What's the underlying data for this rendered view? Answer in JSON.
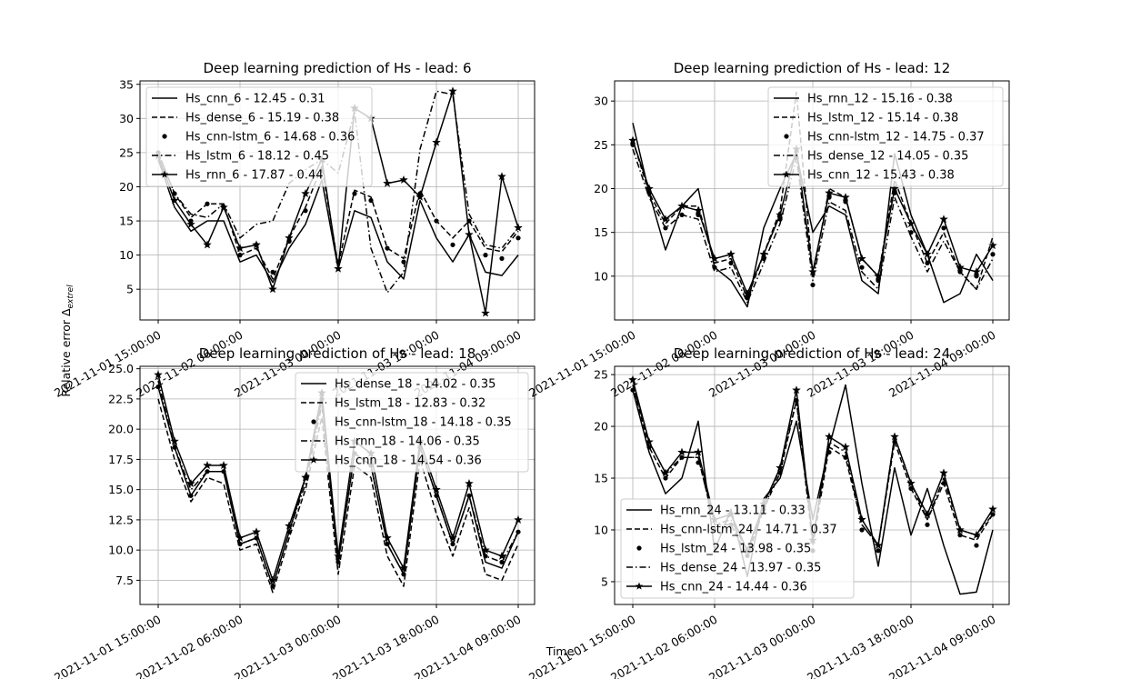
{
  "figure": {
    "ylabel": "Relative error Δ",
    "ylabel_sub": "extrel",
    "xlabel": "Time"
  },
  "chart_data": [
    {
      "type": "line",
      "title": "Deep learning prediction of Hs - lead: 6",
      "xticks": [
        "2021-11-01 15:00:00",
        "2021-11-02 06:00:00",
        "2021-11-03 00:00:00",
        "2021-11-03 18:00:00",
        "2021-11-04 09:00:00"
      ],
      "xtick_index": [
        0,
        5,
        11,
        17,
        22
      ],
      "yticks": [
        5,
        10,
        15,
        20,
        25,
        30,
        35
      ],
      "ylim": [
        0.5,
        35.5
      ],
      "grid": true,
      "legend_position": "upper-left",
      "series": [
        {
          "name": "Hs_cnn_6 - 12.45 - 0.31",
          "style": "solid",
          "values": [
            24,
            17,
            13.5,
            15,
            15,
            9,
            10,
            6,
            11,
            14.5,
            21,
            8,
            16.5,
            15.5,
            9,
            6.5,
            18,
            12.5,
            9,
            13,
            7.5,
            7,
            10
          ]
        },
        {
          "name": "Hs_dense_6 - 15.19 - 0.38",
          "style": "dashed",
          "values": [
            25,
            19,
            15.5,
            17.5,
            17.5,
            10,
            11,
            6.5,
            12.5,
            17,
            23,
            8.5,
            19.5,
            18.5,
            11,
            9.5,
            19.5,
            15,
            12.5,
            15,
            11,
            10.5,
            13.5
          ]
        },
        {
          "name": "Hs_cnn-lstm_6 - 14.68 - 0.36",
          "style": "dotted-markers",
          "values": [
            25,
            19,
            15,
            17.5,
            17,
            10,
            11.5,
            7.5,
            12,
            16.5,
            22.5,
            9,
            19,
            18,
            11,
            9,
            19,
            15,
            11.5,
            15,
            10,
            9.5,
            12.5
          ]
        },
        {
          "name": "Hs_lstm_6 - 18.12 - 0.45",
          "style": "dashdot",
          "values": [
            25,
            19,
            16,
            15.5,
            17.5,
            12.5,
            14.5,
            15,
            20.5,
            22.5,
            24,
            22,
            31,
            11,
            4.5,
            7.5,
            25.5,
            34,
            33.5,
            16,
            11.5,
            11,
            14
          ]
        },
        {
          "name": "Hs_rnn_6 - 17.87 - 0.44",
          "style": "solid-star",
          "values": [
            24.5,
            18,
            14.5,
            11.5,
            17,
            11,
            11.5,
            5,
            12.5,
            19,
            24,
            8,
            31.5,
            30,
            20.5,
            21,
            18.5,
            26.5,
            34,
            13,
            1.5,
            21.5,
            14
          ]
        }
      ]
    },
    {
      "type": "line",
      "title": "Deep learning prediction of Hs - lead: 12",
      "xticks": [
        "2021-11-01 15:00:00",
        "2021-11-02 06:00:00",
        "2021-11-03 00:00:00",
        "2021-11-03 18:00:00",
        "2021-11-04 09:00:00"
      ],
      "xtick_index": [
        0,
        5,
        11,
        17,
        22
      ],
      "yticks": [
        10,
        15,
        20,
        25,
        30
      ],
      "ylim": [
        5,
        32.3
      ],
      "grid": true,
      "legend_position": "upper-right",
      "series": [
        {
          "name": "Hs_rnn_12 - 15.16 - 0.38",
          "style": "solid",
          "values": [
            27.5,
            19.5,
            13,
            18,
            20,
            11,
            9.5,
            6.5,
            15.5,
            20,
            24,
            15,
            18,
            17,
            9.5,
            8,
            24,
            17,
            12.5,
            7,
            8,
            12.5,
            9.5
          ]
        },
        {
          "name": "Hs_lstm_12 - 15.14 - 0.38",
          "style": "dashed",
          "values": [
            25.5,
            19.5,
            16,
            18,
            18,
            11.5,
            12,
            7.5,
            12.5,
            17.5,
            31,
            10,
            20,
            19,
            12,
            10,
            21,
            16,
            11.5,
            15,
            10.5,
            8.5,
            14.5
          ]
        },
        {
          "name": "Hs_cnn-lstm_12 - 14.75 - 0.37",
          "style": "dotted-markers",
          "values": [
            25,
            19.5,
            15.5,
            17,
            17,
            11,
            11.5,
            7.5,
            12,
            16.5,
            23.5,
            9,
            19,
            18.5,
            11,
            9.5,
            19.5,
            15,
            11.5,
            15.5,
            10.5,
            10,
            12.5
          ]
        },
        {
          "name": "Hs_dense_12 - 14.05 - 0.35",
          "style": "dashdot",
          "values": [
            24.5,
            19,
            15.5,
            17,
            16.5,
            10.5,
            11,
            7,
            11.5,
            16,
            23.5,
            9.5,
            18.5,
            17.5,
            10.5,
            8.5,
            19,
            14.5,
            10.5,
            14,
            10.5,
            8.5,
            12
          ]
        },
        {
          "name": "Hs_cnn_12 - 15.43 - 0.38",
          "style": "solid-star",
          "values": [
            25.5,
            20,
            16.5,
            18,
            17.5,
            12,
            12.5,
            8,
            12.5,
            17,
            24.5,
            10.5,
            19.5,
            19,
            12,
            10,
            20,
            16,
            12.5,
            16.5,
            11,
            10.5,
            13.5
          ]
        }
      ]
    },
    {
      "type": "line",
      "title": "Deep learning prediction of Hs - lead: 18",
      "xticks": [
        "2021-11-01 15:00:00",
        "2021-11-02 06:00:00",
        "2021-11-03 00:00:00",
        "2021-11-03 18:00:00",
        "2021-11-04 09:00:00"
      ],
      "xtick_index": [
        0,
        5,
        11,
        17,
        22
      ],
      "yticks": [
        7.5,
        10.0,
        12.5,
        15.0,
        17.5,
        20.0,
        22.5,
        25.0
      ],
      "ytick_labels": [
        "7.5",
        "10.0",
        "12.5",
        "15.0",
        "17.5",
        "20.0",
        "22.5",
        "25.0"
      ],
      "ylim": [
        5.5,
        25.2
      ],
      "grid": true,
      "legend_position": "upper-right",
      "series": [
        {
          "name": "Hs_dense_18 - 14.02 - 0.35",
          "style": "solid",
          "values": [
            23.5,
            18.5,
            14.5,
            16.5,
            16.5,
            10.5,
            11,
            7,
            11.5,
            16,
            22.5,
            9,
            18,
            17,
            10.5,
            8,
            18.5,
            14.5,
            10.5,
            14.5,
            9,
            8.5,
            11.5
          ]
        },
        {
          "name": "Hs_lstm_18 - 12.83 - 0.32",
          "style": "dashed",
          "values": [
            22.5,
            17.5,
            14,
            16,
            15.5,
            10,
            10.5,
            6.5,
            11,
            15,
            21,
            8,
            17,
            16,
            9.5,
            7,
            17.5,
            13,
            9.5,
            13.5,
            8,
            7.5,
            10.5
          ]
        },
        {
          "name": "Hs_cnn-lstm_18 - 14.18 - 0.35",
          "style": "dotted-markers",
          "values": [
            23.5,
            18.5,
            14.5,
            16.5,
            16.5,
            10.5,
            11,
            7,
            11.5,
            16,
            22.5,
            9,
            18,
            17,
            10.5,
            8,
            18.5,
            14.5,
            10.5,
            14.5,
            9.5,
            9,
            11.5
          ]
        },
        {
          "name": "Hs_rnn_18 - 14.06 - 0.35",
          "style": "dashdot",
          "values": [
            24,
            18.5,
            15,
            16.5,
            16.5,
            10.5,
            11,
            7,
            11.5,
            15.5,
            22,
            9,
            18,
            17,
            10.5,
            8,
            18.5,
            14.5,
            10.5,
            14.5,
            9.5,
            9,
            11.5
          ]
        },
        {
          "name": "Hs_cnn_18 - 14.54 - 0.36",
          "style": "solid-star",
          "values": [
            24.5,
            19,
            15.5,
            17,
            17,
            11,
            11.5,
            7.5,
            12,
            16,
            23,
            9.5,
            19,
            18,
            11,
            8.5,
            19,
            15,
            11,
            15.5,
            10,
            9.5,
            12.5
          ]
        }
      ]
    },
    {
      "type": "line",
      "title": "Deep learning prediction of Hs - lead: 24",
      "xticks": [
        "2021-11-01 15:00:00",
        "2021-11-02 06:00:00",
        "2021-11-03 00:00:00",
        "2021-11-03 18:00:00",
        "2021-11-04 09:00:00"
      ],
      "xtick_index": [
        0,
        5,
        11,
        17,
        22
      ],
      "yticks": [
        5,
        10,
        15,
        20,
        25
      ],
      "ylim": [
        2.8,
        25.8
      ],
      "grid": true,
      "legend_position": "lower-left",
      "series": [
        {
          "name": "Hs_rnn_24 - 13.11 - 0.33",
          "style": "solid",
          "values": [
            23.5,
            17.5,
            13.5,
            15,
            20.5,
            8,
            12,
            5.5,
            13,
            15,
            20.5,
            11,
            18,
            24,
            14.5,
            6.5,
            16,
            9.5,
            14,
            8.5,
            3.8,
            4,
            10
          ]
        },
        {
          "name": "Hs_cnn-lstm_24 - 14.71 - 0.37",
          "style": "dashed",
          "values": [
            24,
            18,
            15,
            17,
            17,
            10.5,
            10.5,
            7.5,
            12,
            15.5,
            22.5,
            8.5,
            18,
            17,
            10.5,
            8.5,
            18.5,
            14,
            11,
            14.5,
            9.5,
            9,
            11.5
          ]
        },
        {
          "name": "Hs_lstm_24 - 13.98 - 0.35",
          "style": "dotted-markers",
          "values": [
            23.5,
            18,
            15,
            17,
            16.5,
            10,
            10.5,
            7.5,
            12,
            15.5,
            22.5,
            8,
            17.5,
            17,
            10,
            8,
            18.5,
            14,
            10.5,
            14.5,
            9.5,
            8.5,
            11.5
          ]
        },
        {
          "name": "Hs_dense_24 - 13.97 - 0.35",
          "style": "dashdot",
          "values": [
            24,
            18.5,
            15.5,
            17,
            17,
            10.5,
            11,
            8,
            12,
            16,
            22.5,
            9,
            18.5,
            17.5,
            10.5,
            8.5,
            19,
            14.5,
            11,
            15,
            10,
            9.5,
            11.5
          ]
        },
        {
          "name": "Hs_cnn_24 - 14.44 - 0.36",
          "style": "solid-star",
          "values": [
            24.5,
            18.5,
            15.5,
            17.5,
            17.5,
            11,
            11.5,
            8,
            12.5,
            16,
            23.5,
            9,
            19,
            18,
            11,
            8.5,
            19,
            14.5,
            11.5,
            15.5,
            10,
            9.5,
            12
          ]
        }
      ]
    }
  ]
}
